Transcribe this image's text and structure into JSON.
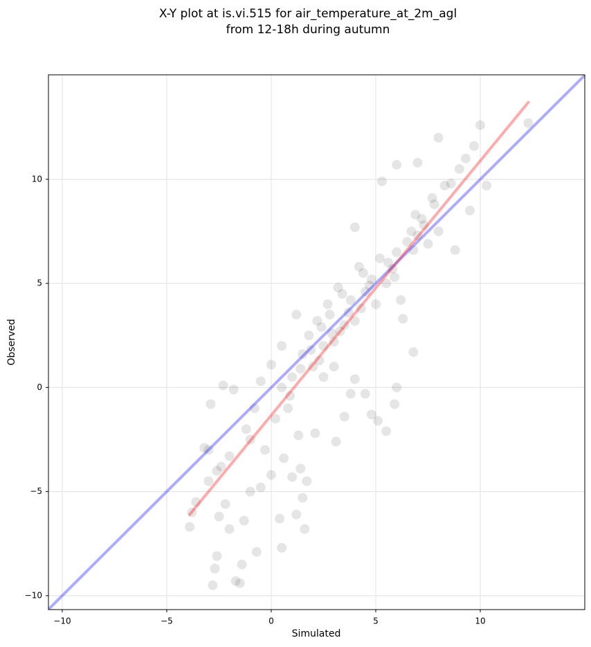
{
  "chart_data": {
    "type": "scatter",
    "title": [
      "X-Y plot at is.vi.515 for air_temperature_at_2m_agl",
      "from 12-18h during autumn"
    ],
    "xlabel": "Simulated",
    "ylabel": "Observed",
    "xlim": [
      -10.66,
      15.0
    ],
    "ylim": [
      -10.67,
      15.02
    ],
    "xticks": [
      {
        "value": -10,
        "label": "−10"
      },
      {
        "value": -5,
        "label": "−5"
      },
      0,
      5,
      10
    ],
    "yticks": [
      {
        "value": -10,
        "label": "−10"
      },
      {
        "value": -5,
        "label": "−5"
      },
      0,
      5,
      10
    ],
    "grid": true,
    "points": {
      "color": "#000000",
      "x": [
        -3.9,
        -3.8,
        -3.6,
        -3.2,
        -3.0,
        -2.9,
        -2.8,
        -2.7,
        -2.6,
        -2.5,
        -2.4,
        -2.3,
        -2.2,
        -2.0,
        -1.8,
        -1.7,
        -1.5,
        -1.4,
        -1.3,
        -1.2,
        -1.0,
        -0.8,
        -0.7,
        -0.5,
        -0.3,
        0.0,
        0.2,
        0.4,
        0.5,
        0.6,
        0.8,
        1.0,
        1.2,
        1.4,
        1.5,
        1.6,
        1.7,
        1.3,
        0.0,
        0.5,
        1.0,
        1.5,
        2.0,
        2.1,
        2.5,
        3.0,
        3.1,
        3.5,
        4.0,
        4.5,
        4.8,
        5.1,
        5.5,
        5.9,
        6.0,
        1.8,
        2.2,
        2.5,
        2.8,
        3.0,
        3.2,
        3.5,
        3.8,
        4.0,
        4.2,
        4.5,
        4.8,
        5.0,
        5.2,
        5.5,
        5.8,
        6.0,
        6.2,
        6.5,
        6.8,
        7.0,
        7.2,
        7.5,
        7.8,
        8.0,
        8.3,
        8.6,
        9.0,
        9.3,
        9.5,
        10.0,
        10.3,
        9.7,
        8.8,
        8.0,
        7.0,
        6.0,
        5.3,
        4.0,
        12.3,
        6.3,
        6.8,
        3.8,
        2.7,
        1.2,
        0.5,
        -0.5,
        -1.0,
        -2.0,
        -2.6,
        -3.0,
        2.3,
        3.3,
        4.3,
        5.6,
        6.7,
        7.3,
        4.7,
        3.7,
        2.9,
        1.9,
        5.9,
        6.9,
        7.7,
        4.4,
        3.4,
        2.4,
        1.4,
        0.9
      ],
      "y": [
        -6.7,
        -6.0,
        -5.5,
        -2.9,
        -4.5,
        -0.8,
        -9.5,
        -8.7,
        -8.1,
        -6.2,
        -3.8,
        0.1,
        -5.6,
        -6.8,
        -0.1,
        -9.3,
        -9.4,
        -8.5,
        -6.4,
        -2.0,
        -5.0,
        -1.0,
        -7.9,
        -4.8,
        -3.0,
        -4.2,
        -1.5,
        -6.3,
        -7.7,
        -3.4,
        -1.0,
        -4.3,
        -6.1,
        -3.9,
        -5.3,
        -6.8,
        -4.5,
        -2.3,
        1.1,
        0.0,
        0.5,
        1.6,
        1.0,
        -2.2,
        0.5,
        1.0,
        -2.6,
        -1.4,
        0.4,
        -0.3,
        -1.3,
        -1.6,
        -2.1,
        -0.8,
        0.0,
        2.5,
        3.2,
        2.0,
        3.5,
        2.2,
        4.8,
        3.0,
        4.2,
        3.2,
        5.8,
        4.6,
        5.2,
        4.0,
        6.2,
        5.0,
        5.7,
        6.5,
        4.2,
        7.0,
        6.6,
        7.3,
        8.1,
        6.9,
        8.8,
        7.5,
        9.7,
        9.8,
        10.5,
        11.0,
        8.5,
        12.6,
        9.7,
        11.6,
        6.6,
        12.0,
        10.8,
        10.7,
        9.9,
        7.7,
        12.7,
        3.3,
        1.7,
        -0.3,
        4.0,
        3.5,
        2.0,
        0.3,
        -2.5,
        -3.3,
        -4.0,
        -3.0,
        1.3,
        2.7,
        3.8,
        6.0,
        7.5,
        7.8,
        4.9,
        3.6,
        2.6,
        1.8,
        5.3,
        8.3,
        9.1,
        5.5,
        4.5,
        2.9,
        0.9,
        -0.4
      ]
    },
    "lines": [
      {
        "color": "#0000ff",
        "x": [
          -10.66,
          15.0
        ],
        "y": [
          -10.66,
          15.0
        ]
      },
      {
        "color": "#ff0000",
        "x": [
          -3.9,
          12.3
        ],
        "y": [
          -6.1,
          13.7
        ]
      }
    ]
  }
}
